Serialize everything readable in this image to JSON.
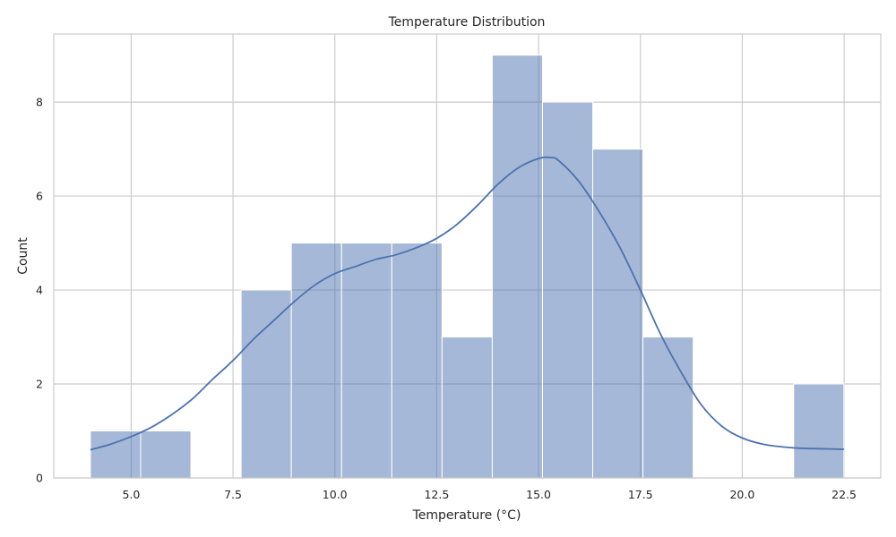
{
  "chart_data": {
    "type": "bar",
    "title": "Temperature Distribution",
    "xlabel": "Temperature (°C)",
    "ylabel": "Count",
    "xlim": [
      3.1,
      23.4
    ],
    "ylim": [
      0,
      9.45
    ],
    "grid": true,
    "xticks": [
      5.0,
      7.5,
      10.0,
      12.5,
      15.0,
      17.5,
      20.0,
      22.5
    ],
    "xtick_labels": [
      "5.0",
      "7.5",
      "10.0",
      "12.5",
      "15.0",
      "17.5",
      "20.0",
      "22.5"
    ],
    "yticks": [
      0,
      2,
      4,
      6,
      8
    ],
    "ytick_labels": [
      "0",
      "2",
      "4",
      "6",
      "8"
    ],
    "bin_start": 4.0,
    "bin_width": 1.233,
    "counts": [
      1,
      1,
      0,
      4,
      5,
      5,
      5,
      3,
      9,
      8,
      7,
      3,
      0,
      0,
      2
    ],
    "kde_curve": {
      "x": [
        4.0,
        4.5,
        5.0,
        5.5,
        6.0,
        6.5,
        7.0,
        7.5,
        8.0,
        8.5,
        9.0,
        9.5,
        10.0,
        10.5,
        11.0,
        11.5,
        12.0,
        12.5,
        13.0,
        13.5,
        14.0,
        14.5,
        15.0,
        15.3,
        15.5,
        16.0,
        16.5,
        17.0,
        17.5,
        18.0,
        18.5,
        19.0,
        19.5,
        20.0,
        20.5,
        21.0,
        21.5,
        22.0,
        22.5
      ],
      "y": [
        0.6,
        0.72,
        0.88,
        1.08,
        1.35,
        1.68,
        2.1,
        2.5,
        2.95,
        3.35,
        3.75,
        4.1,
        4.35,
        4.5,
        4.65,
        4.75,
        4.9,
        5.1,
        5.4,
        5.8,
        6.25,
        6.6,
        6.8,
        6.82,
        6.75,
        6.3,
        5.65,
        4.9,
        4.0,
        3.05,
        2.25,
        1.55,
        1.1,
        0.85,
        0.72,
        0.66,
        0.63,
        0.62,
        0.61
      ]
    },
    "colors": {
      "bar_fill": "#4c72b0",
      "bar_opacity": 0.5,
      "kde_line": "#4c72b0"
    }
  }
}
